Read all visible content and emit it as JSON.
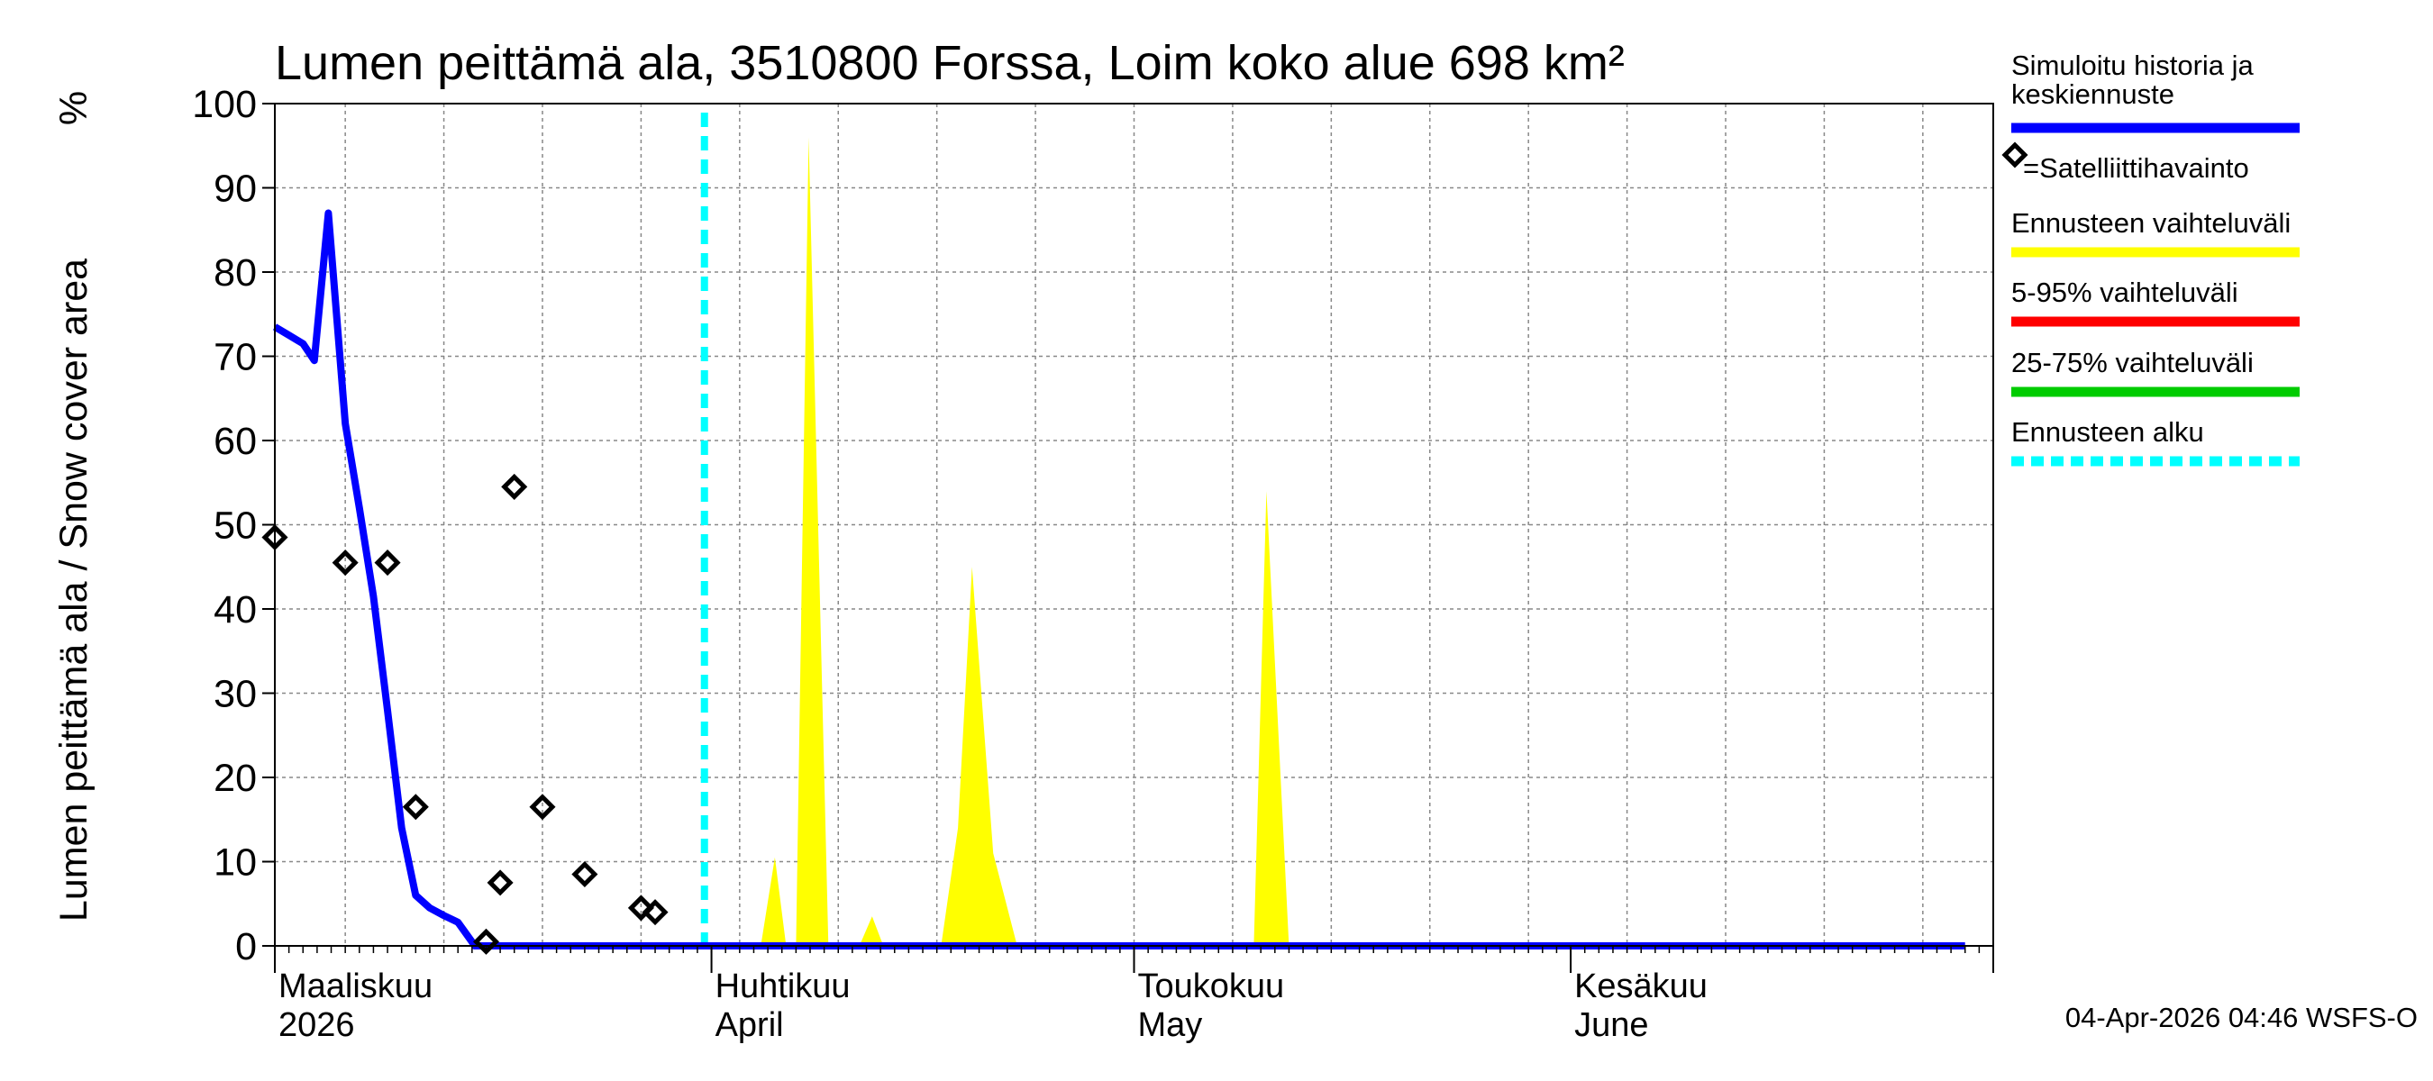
{
  "chart_data": {
    "type": "area",
    "title": "Lumen peittämä ala, 3510800 Forssa, Loim koko alue 698 km²",
    "ylabel": "Lumen peittämä ala / Snow cover area",
    "yunit": "%",
    "ylim": [
      0,
      100
    ],
    "yticks": [
      0,
      10,
      20,
      30,
      40,
      50,
      60,
      70,
      80,
      90,
      100
    ],
    "x_start": "2026-03-01",
    "x_end": "2026-06-30",
    "months": [
      {
        "fi": "Maaliskuu",
        "en": "2026",
        "day": 0
      },
      {
        "fi": "Huhtikuu",
        "en": "April",
        "day": 31
      },
      {
        "fi": "Toukokuu",
        "en": "May",
        "day": 61
      },
      {
        "fi": "Kesäkuu",
        "en": "June",
        "day": 92
      }
    ],
    "forecast_start_day": 30.5,
    "series": [
      {
        "name": "Simuloitu historia ja keskiennuste",
        "color": "#0000ff",
        "points": [
          [
            0,
            73.5
          ],
          [
            1,
            72.5
          ],
          [
            2,
            71.5
          ],
          [
            2.8,
            69.5
          ],
          [
            3.8,
            87
          ],
          [
            5,
            62
          ],
          [
            6,
            52
          ],
          [
            7,
            41.5
          ],
          [
            8,
            28
          ],
          [
            9,
            14
          ],
          [
            10,
            6
          ],
          [
            11,
            4.5
          ],
          [
            12,
            3.6
          ],
          [
            13,
            2.8
          ],
          [
            14.2,
            0
          ],
          [
            30.5,
            0
          ],
          [
            120,
            0
          ]
        ]
      },
      {
        "name": "Ennusteen vaihteluväli",
        "color": "#ffff00",
        "points": [
          [
            34.5,
            0
          ],
          [
            35.5,
            10.5
          ],
          [
            36.3,
            0
          ],
          [
            37,
            0
          ],
          [
            37.9,
            96
          ],
          [
            39.3,
            0
          ],
          [
            41.5,
            0
          ],
          [
            42.4,
            3.5
          ],
          [
            43.2,
            0
          ],
          [
            47.3,
            0
          ],
          [
            48.5,
            14
          ],
          [
            49.5,
            45
          ],
          [
            51,
            11
          ],
          [
            52.7,
            0
          ],
          [
            69.5,
            0
          ],
          [
            70.4,
            54
          ],
          [
            72,
            0
          ]
        ]
      }
    ],
    "observations": {
      "name": "=Satelliittihavainto",
      "points": [
        [
          0,
          48.5
        ],
        [
          5,
          45.5
        ],
        [
          8,
          45.5
        ],
        [
          10,
          16.5
        ],
        [
          15,
          0.5
        ],
        [
          16,
          7.5
        ],
        [
          17,
          54.5
        ],
        [
          19,
          16.5
        ],
        [
          22,
          8.5
        ],
        [
          26,
          4.5
        ],
        [
          27,
          4
        ]
      ]
    },
    "legend": [
      {
        "label": "Simuloitu historia ja",
        "label2": "keskiennuste",
        "color": "#0000ff",
        "style": "solid"
      },
      {
        "label": "=Satelliittihavainto",
        "color": "#000000",
        "style": "marker"
      },
      {
        "label": "Ennusteen vaihteluväli",
        "color": "#ffff00",
        "style": "solid"
      },
      {
        "label": "5-95% vaihteluväli",
        "color": "#ff0000",
        "style": "solid"
      },
      {
        "label": "25-75% vaihteluväli",
        "color": "#00cc00",
        "style": "solid"
      },
      {
        "label": "Ennusteen alku",
        "color": "#00ffff",
        "style": "dashed"
      }
    ],
    "footer": "04-Apr-2026 04:46 WSFS-O"
  }
}
